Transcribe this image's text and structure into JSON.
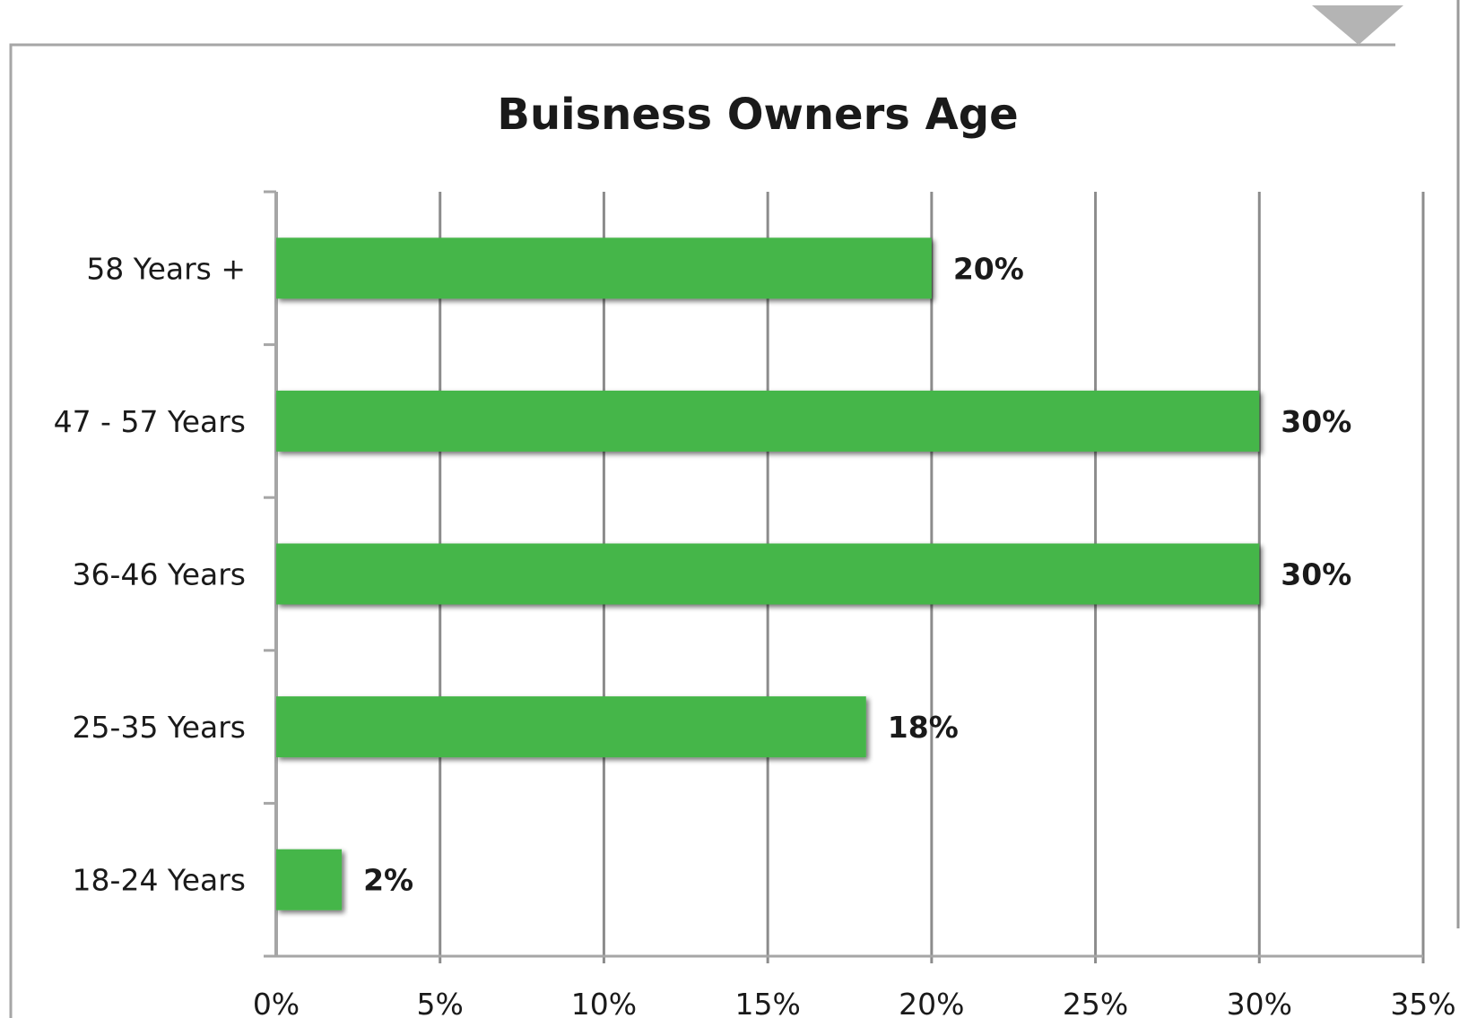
{
  "chart_data": {
    "type": "bar",
    "orientation": "horizontal",
    "title": "Buisness Owners Age",
    "xlabel": "",
    "ylabel": "",
    "categories": [
      "58 Years +",
      "47 - 57 Years",
      "36-46 Years",
      "25-35 Years",
      "18-24 Years"
    ],
    "values": [
      20,
      30,
      30,
      18,
      2
    ],
    "data_labels": [
      "20%",
      "30%",
      "30%",
      "18%",
      "2%"
    ],
    "xlim": [
      0,
      35
    ],
    "x_ticks": [
      0,
      5,
      10,
      15,
      20,
      25,
      30,
      35
    ],
    "x_tick_labels": [
      "0%",
      "5%",
      "10%",
      "15%",
      "20%",
      "25%",
      "30%",
      "35%"
    ],
    "grid": "vertical",
    "legend": "none",
    "colors": {
      "bar": "#45b649",
      "grid": "#8c8c8c",
      "frame": "#a6a6a6",
      "text": "#1a1a1a"
    }
  }
}
